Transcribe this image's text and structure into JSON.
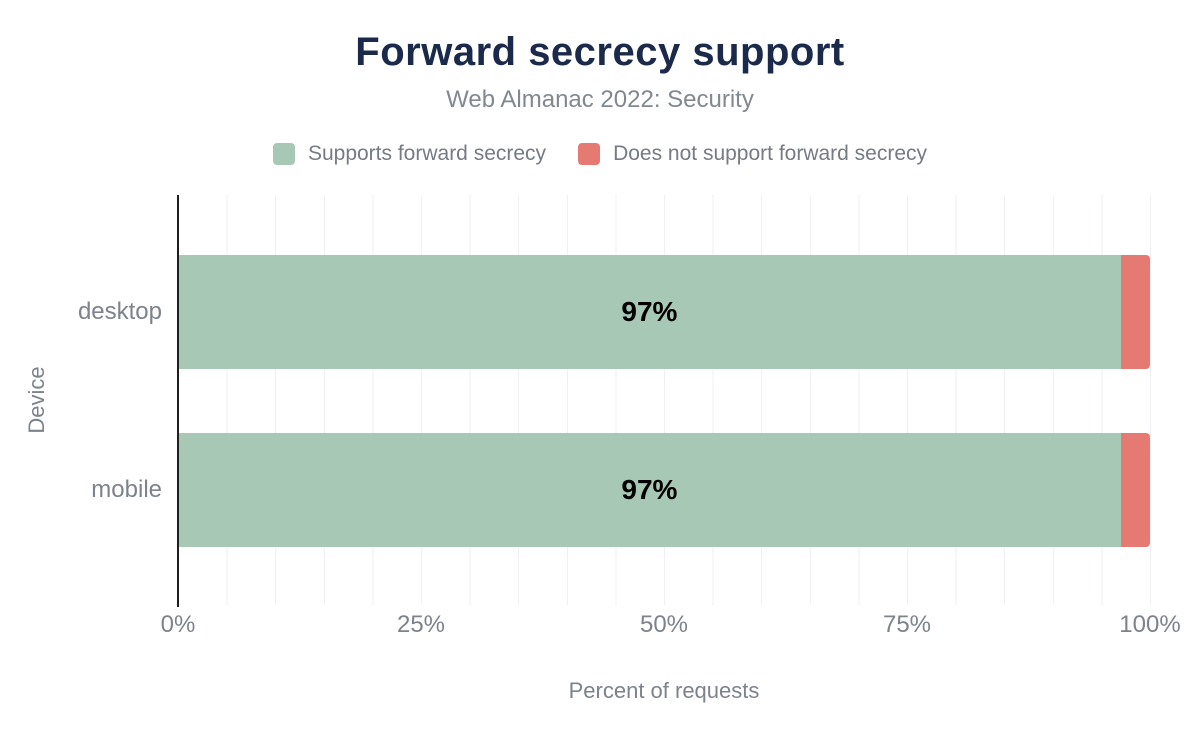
{
  "title": "Forward secrecy support",
  "subtitle": "Web Almanac 2022: Security",
  "legend": {
    "items": [
      {
        "label": "Supports forward secrecy",
        "color": "#a7c8b4"
      },
      {
        "label": "Does not support forward secrecy",
        "color": "#e57a72"
      }
    ]
  },
  "chart_data": {
    "type": "bar",
    "orientation": "horizontal",
    "stacked": true,
    "title": "Forward secrecy support",
    "subtitle": "Web Almanac 2022: Security",
    "categories": [
      "desktop",
      "mobile"
    ],
    "series": [
      {
        "name": "Supports forward secrecy",
        "color": "#a7c8b4",
        "values": [
          97,
          97
        ]
      },
      {
        "name": "Does not support forward secrecy",
        "color": "#e57a72",
        "values": [
          3,
          3
        ]
      }
    ],
    "bar_labels": [
      "97%",
      "97%"
    ],
    "xlabel": "Percent of requests",
    "ylabel": "Device",
    "x_ticks": [
      "0%",
      "25%",
      "50%",
      "75%",
      "100%"
    ],
    "xlim": [
      0,
      100
    ],
    "grid": {
      "vertical_step_percent": 5,
      "color": "#eef0f2"
    },
    "legend_position": "top"
  },
  "colors": {
    "title": "#1b2a4a",
    "subtitle": "#82888f",
    "axis_line": "#1f1f1f",
    "label_gray": "#7d838b",
    "bar_value_label": "#000000",
    "supports": "#a7c8b4",
    "not_supports": "#e57a72"
  }
}
